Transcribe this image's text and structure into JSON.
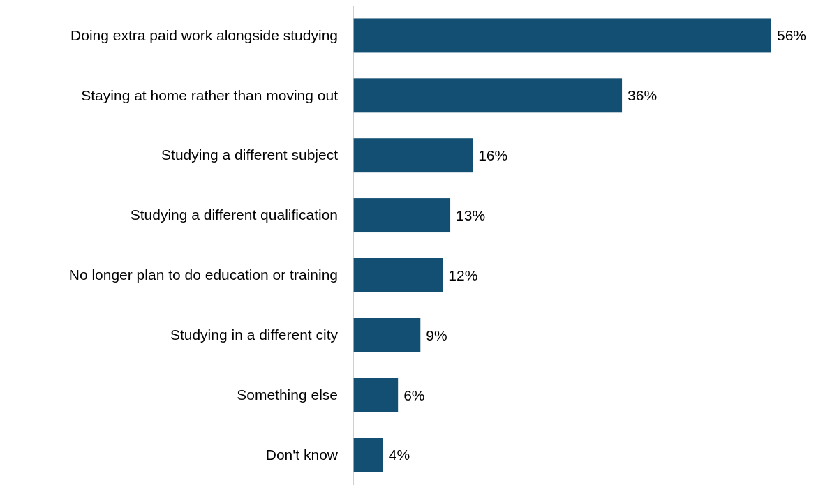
{
  "chart_data": {
    "type": "bar",
    "orientation": "horizontal",
    "categories": [
      "Doing extra paid work alongside studying",
      "Staying at home rather than moving out",
      "Studying a different subject",
      "Studying a different qualification",
      "No longer plan to do education or training",
      "Studying in a different city",
      "Something else",
      "Don't know"
    ],
    "values": [
      56,
      36,
      16,
      13,
      12,
      9,
      6,
      4
    ],
    "value_labels": [
      "56%",
      "36%",
      "16%",
      "13%",
      "12%",
      "9%",
      "6%",
      "4%"
    ],
    "color": "#124f73"
  }
}
